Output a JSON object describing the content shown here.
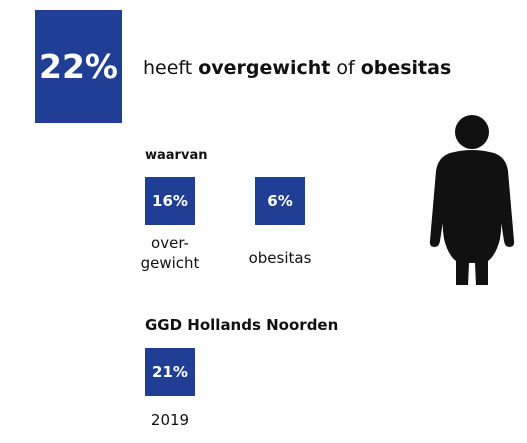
{
  "main": {
    "value": "22%",
    "headline": [
      {
        "text": "heeft",
        "bold": false
      },
      {
        "text": "overgewicht",
        "bold": true
      },
      {
        "text": "of",
        "bold": false
      },
      {
        "text": "obesitas",
        "bold": true
      }
    ]
  },
  "breakdown": {
    "title": "waarvan",
    "items": [
      {
        "value": "16%",
        "label": [
          "over-",
          "gewicht"
        ]
      },
      {
        "value": "6%",
        "label": [
          "obesitas"
        ]
      }
    ]
  },
  "region": {
    "title": "GGD Hollands Noorden",
    "value": "21%",
    "year": "2019"
  },
  "color": "#203f94"
}
